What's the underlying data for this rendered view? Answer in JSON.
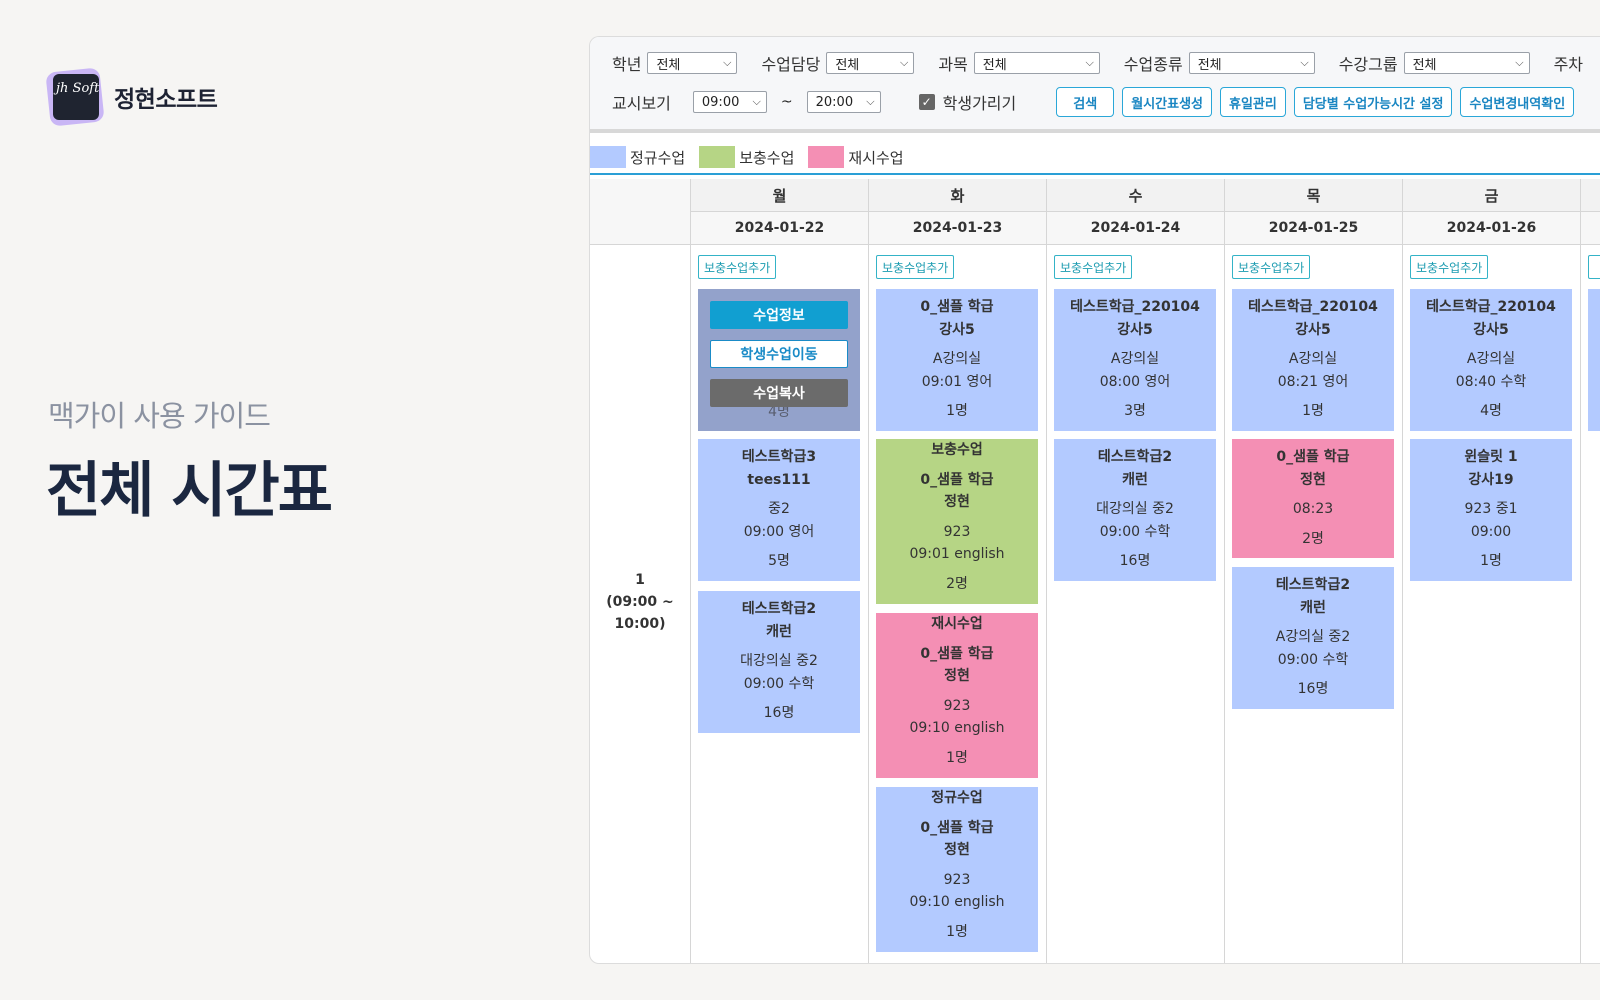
{
  "brand": {
    "logo_text": "정현소프트",
    "logo_mark": "jh Soft"
  },
  "guide": {
    "subtitle": "맥가이 사용 가이드",
    "title": "전체 시간표"
  },
  "filters": {
    "grade": {
      "label": "학년",
      "value": "전체"
    },
    "teacher": {
      "label": "수업담당",
      "value": "전체"
    },
    "subject": {
      "label": "과목",
      "value": "전체"
    },
    "class_type": {
      "label": "수업종류",
      "value": "전체"
    },
    "group": {
      "label": "수강그룹",
      "value": "전체"
    },
    "cut_label": "주차",
    "period_view": {
      "label": "교시보기",
      "start": "09:00",
      "tilde": "~",
      "end": "20:00"
    },
    "hide_students": {
      "label": "학생가리기",
      "checked": "✓"
    }
  },
  "buttons": {
    "search": "검색",
    "monthly": "월시간표생성",
    "holiday": "휴일관리",
    "availability": "담당별 수업가능시간 설정",
    "history": "수업변경내역확인"
  },
  "legend": {
    "regular": {
      "label": "정규수업",
      "color": "#b3caff"
    },
    "makeup": {
      "label": "보충수업",
      "color": "#b6d585"
    },
    "retake": {
      "label": "재시수업",
      "color": "#f48fb4"
    }
  },
  "period": {
    "num": "1",
    "range_a": "(09:00 ~",
    "range_b": "10:00)"
  },
  "add_label": "보충수업추가",
  "overlay": {
    "info": "수업정보",
    "move": "학생수업이동",
    "copy": "수업복사"
  },
  "days": [
    {
      "day": "월",
      "date": "2024-01-22"
    },
    {
      "day": "화",
      "date": "2024-01-23"
    },
    {
      "day": "수",
      "date": "2024-01-24"
    },
    {
      "day": "목",
      "date": "2024-01-25"
    },
    {
      "day": "금",
      "date": "2024-01-26"
    }
  ],
  "cards": {
    "mon0": {
      "l3": "4명"
    },
    "mon1": {
      "name": "테스트학급3",
      "teacher": "tees111",
      "info": "중2",
      "time": "09:00   영어",
      "count": "5명"
    },
    "mon2": {
      "name": "테스트학급2",
      "teacher": "캐런",
      "info": "대강의실   중2",
      "time": "09:00   수학",
      "count": "16명"
    },
    "tue0": {
      "name": "0_샘플 학급",
      "teacher": "강사5",
      "info": "A강의실",
      "time": "09:01   영어",
      "count": "1명"
    },
    "tue1": {
      "type": "보충수업",
      "name": "0_샘플 학급",
      "teacher": "정현",
      "info": "923",
      "time": "09:01   english",
      "count": "2명"
    },
    "tue2": {
      "type": "재시수업",
      "name": "0_샘플 학급",
      "teacher": "정현",
      "info": "923",
      "time": "09:10   english",
      "count": "1명"
    },
    "tue3": {
      "type": "정규수업",
      "name": "0_샘플 학급",
      "teacher": "정현",
      "info": "923",
      "time": "09:10   english",
      "count": "1명"
    },
    "wed0": {
      "name": "테스트학급_220104",
      "teacher": "강사5",
      "info": "A강의실",
      "time": "08:00   영어",
      "count": "3명"
    },
    "wed1": {
      "name": "테스트학급2",
      "teacher": "캐런",
      "info": "대강의실   중2",
      "time": "09:00   수학",
      "count": "16명"
    },
    "thu0": {
      "name": "테스트학급_220104",
      "teacher": "강사5",
      "info": "A강의실",
      "time": "08:21   영어",
      "count": "1명"
    },
    "thu1": {
      "name": "0_샘플 학급",
      "teacher": "정현",
      "time": "08:23",
      "count": "2명"
    },
    "thu2": {
      "name": "테스트학급2",
      "teacher": "캐런",
      "info": "A강의실   중2",
      "time": "09:00   수학",
      "count": "16명"
    },
    "fri0": {
      "name": "테스트학급_220104",
      "teacher": "강사5",
      "info": "A강의실",
      "time": "08:40   수학",
      "count": "4명"
    },
    "fri1": {
      "name": "윈슬릿 1",
      "teacher": "강사19",
      "info": "923   중1",
      "time": "09:00",
      "count": "1명"
    }
  }
}
